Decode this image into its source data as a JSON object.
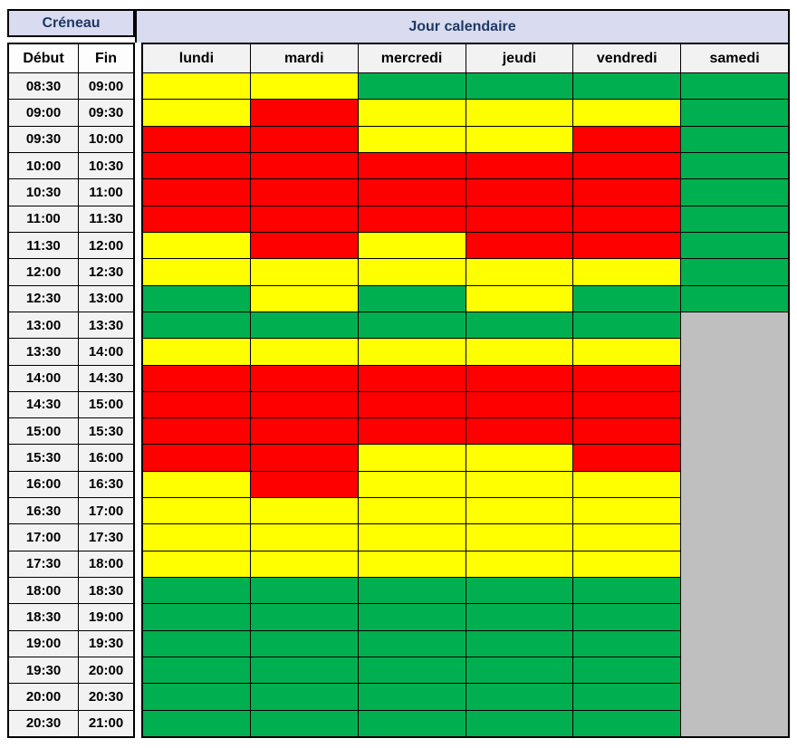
{
  "header": {
    "creneau": "Créneau",
    "jour_calendaire": "Jour calendaire"
  },
  "chart_data": {
    "type": "heatmap",
    "title": "",
    "columns": [
      "lundi",
      "mardi",
      "mercredi",
      "jeudi",
      "vendredi",
      "samedi"
    ],
    "row_header_labels": [
      "Début",
      "Fin"
    ],
    "rows": [
      {
        "debut": "08:30",
        "fin": "09:00",
        "values": [
          "yellow",
          "yellow",
          "green",
          "green",
          "green",
          "green"
        ]
      },
      {
        "debut": "09:00",
        "fin": "09:30",
        "values": [
          "yellow",
          "red",
          "yellow",
          "yellow",
          "yellow",
          "green"
        ]
      },
      {
        "debut": "09:30",
        "fin": "10:00",
        "values": [
          "red",
          "red",
          "yellow",
          "yellow",
          "red",
          "green"
        ]
      },
      {
        "debut": "10:00",
        "fin": "10:30",
        "values": [
          "red",
          "red",
          "red",
          "red",
          "red",
          "green"
        ]
      },
      {
        "debut": "10:30",
        "fin": "11:00",
        "values": [
          "red",
          "red",
          "red",
          "red",
          "red",
          "green"
        ]
      },
      {
        "debut": "11:00",
        "fin": "11:30",
        "values": [
          "red",
          "red",
          "red",
          "red",
          "red",
          "green"
        ]
      },
      {
        "debut": "11:30",
        "fin": "12:00",
        "values": [
          "yellow",
          "red",
          "yellow",
          "red",
          "red",
          "green"
        ]
      },
      {
        "debut": "12:00",
        "fin": "12:30",
        "values": [
          "yellow",
          "yellow",
          "yellow",
          "yellow",
          "yellow",
          "green"
        ]
      },
      {
        "debut": "12:30",
        "fin": "13:00",
        "values": [
          "green",
          "yellow",
          "green",
          "yellow",
          "green",
          "green"
        ]
      },
      {
        "debut": "13:00",
        "fin": "13:30",
        "values": [
          "green",
          "green",
          "green",
          "green",
          "green",
          "gray"
        ]
      },
      {
        "debut": "13:30",
        "fin": "14:00",
        "values": [
          "yellow",
          "yellow",
          "yellow",
          "yellow",
          "yellow",
          "gray"
        ]
      },
      {
        "debut": "14:00",
        "fin": "14:30",
        "values": [
          "red",
          "red",
          "red",
          "red",
          "red",
          "gray"
        ]
      },
      {
        "debut": "14:30",
        "fin": "15:00",
        "values": [
          "red",
          "red",
          "red",
          "red",
          "red",
          "gray"
        ]
      },
      {
        "debut": "15:00",
        "fin": "15:30",
        "values": [
          "red",
          "red",
          "red",
          "red",
          "red",
          "gray"
        ]
      },
      {
        "debut": "15:30",
        "fin": "16:00",
        "values": [
          "red",
          "red",
          "yellow",
          "yellow",
          "red",
          "gray"
        ]
      },
      {
        "debut": "16:00",
        "fin": "16:30",
        "values": [
          "yellow",
          "red",
          "yellow",
          "yellow",
          "yellow",
          "gray"
        ]
      },
      {
        "debut": "16:30",
        "fin": "17:00",
        "values": [
          "yellow",
          "yellow",
          "yellow",
          "yellow",
          "yellow",
          "gray"
        ]
      },
      {
        "debut": "17:00",
        "fin": "17:30",
        "values": [
          "yellow",
          "yellow",
          "yellow",
          "yellow",
          "yellow",
          "gray"
        ]
      },
      {
        "debut": "17:30",
        "fin": "18:00",
        "values": [
          "yellow",
          "yellow",
          "yellow",
          "yellow",
          "yellow",
          "gray"
        ]
      },
      {
        "debut": "18:00",
        "fin": "18:30",
        "values": [
          "green",
          "green",
          "green",
          "green",
          "green",
          "gray"
        ]
      },
      {
        "debut": "18:30",
        "fin": "19:00",
        "values": [
          "green",
          "green",
          "green",
          "green",
          "green",
          "gray"
        ]
      },
      {
        "debut": "19:00",
        "fin": "19:30",
        "values": [
          "green",
          "green",
          "green",
          "green",
          "green",
          "gray"
        ]
      },
      {
        "debut": "19:30",
        "fin": "20:00",
        "values": [
          "green",
          "green",
          "green",
          "green",
          "green",
          "gray"
        ]
      },
      {
        "debut": "20:00",
        "fin": "20:30",
        "values": [
          "green",
          "green",
          "green",
          "green",
          "green",
          "gray"
        ]
      },
      {
        "debut": "20:30",
        "fin": "21:00",
        "values": [
          "green",
          "green",
          "green",
          "green",
          "green",
          "gray"
        ]
      }
    ],
    "colors": {
      "green": "#00B050",
      "yellow": "#FFFF00",
      "red": "#FF0000",
      "gray": "#BFBFBF"
    },
    "merged_gray_region": {
      "column": "samedi",
      "from": "13:00",
      "to": "21:00",
      "value": "gray"
    }
  },
  "style": {
    "header_bg": "#D9DCF0",
    "header_text": "#1F3864",
    "subheader_bg": "#F2F2F2",
    "border_color": "#000000"
  }
}
